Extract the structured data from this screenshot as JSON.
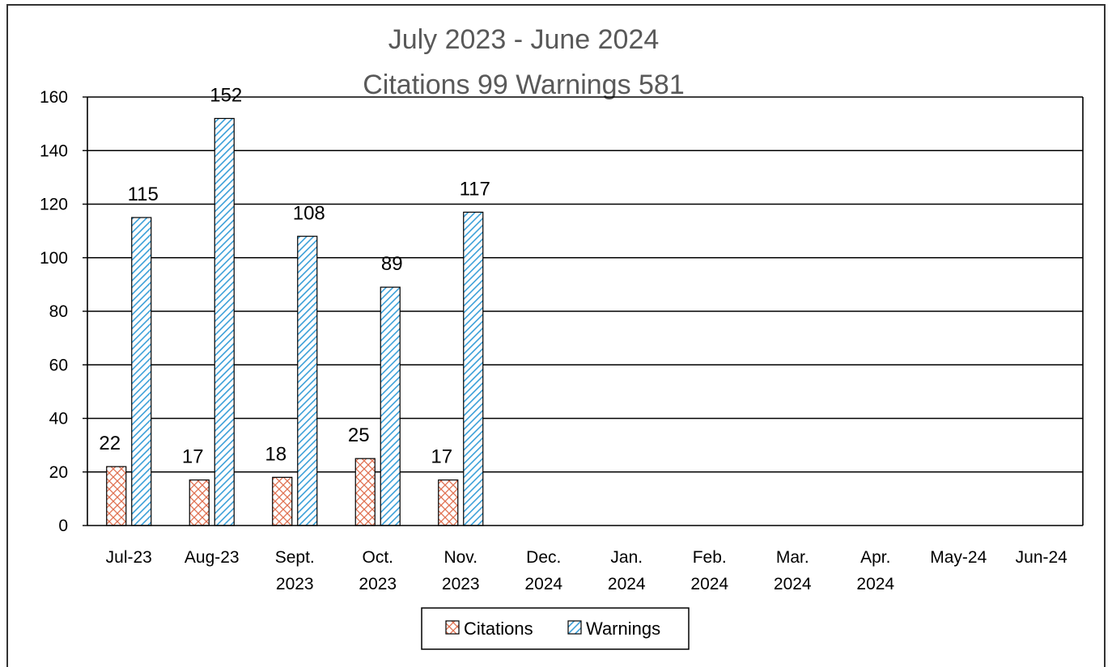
{
  "chart_data": {
    "type": "bar",
    "title": "July 2023 - June 2024",
    "subtitle": "Citations 99  Warnings 581",
    "categories": [
      [
        "Jul-23"
      ],
      [
        "Aug-23"
      ],
      [
        "Sept.",
        "2023"
      ],
      [
        "Oct.",
        "2023"
      ],
      [
        "Nov.",
        "2023"
      ],
      [
        "Dec.",
        "2024"
      ],
      [
        "Jan.",
        "2024"
      ],
      [
        "Feb.",
        "2024"
      ],
      [
        "Mar.",
        "2024"
      ],
      [
        "Apr.",
        "2024"
      ],
      [
        "May-24"
      ],
      [
        "Jun-24"
      ]
    ],
    "series": [
      {
        "name": "Citations",
        "values": [
          22,
          17,
          18,
          25,
          17,
          null,
          null,
          null,
          null,
          null,
          null,
          null
        ],
        "color": "#e07050",
        "pattern": "crosshatch"
      },
      {
        "name": "Warnings",
        "values": [
          115,
          152,
          108,
          89,
          117,
          null,
          null,
          null,
          null,
          null,
          null,
          null
        ],
        "color": "#3a9fd8",
        "pattern": "diagonal"
      }
    ],
    "ylim": [
      0,
      160
    ],
    "yticks": [
      0,
      20,
      40,
      60,
      80,
      100,
      120,
      140,
      160
    ],
    "grid": true,
    "legend": "bottom",
    "data_labels": true
  }
}
